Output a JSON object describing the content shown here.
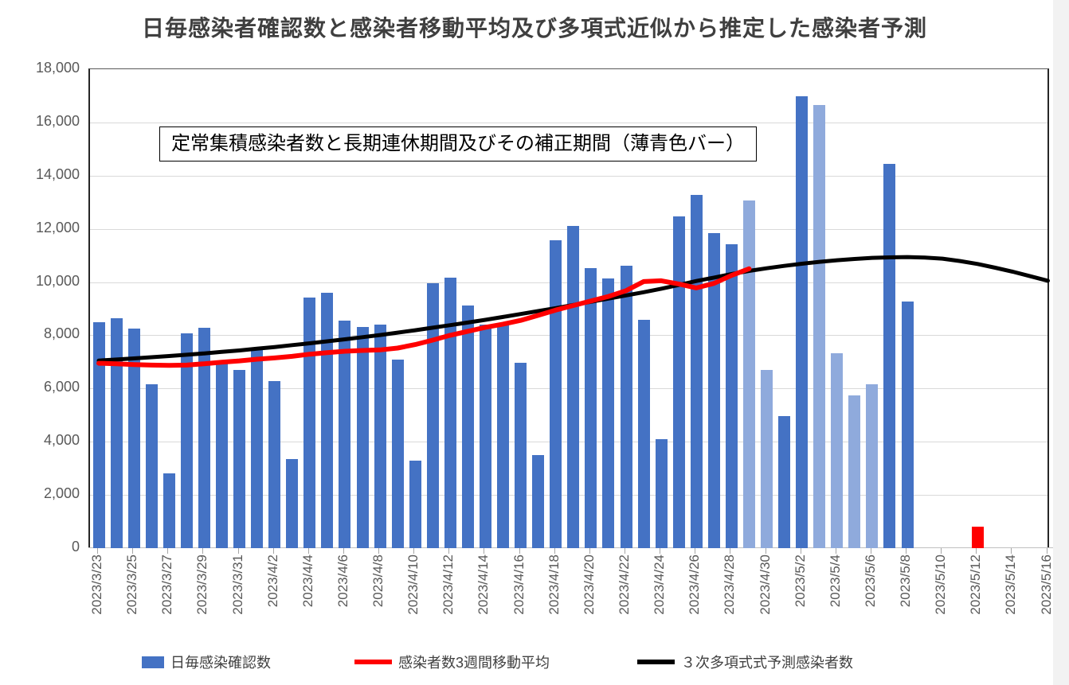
{
  "title": "日毎感染者確認数と感染者移動平均及び多項式近似から推定した感染者予測",
  "annotation": "定常集積感染者数と長期連休期間及びその補正期間（薄青色バー）",
  "colors": {
    "bar_normal": "#4472C4",
    "bar_holiday_light": "#8FAADC",
    "bar_special_red": "#FF0000",
    "ma_line": "#FF0000",
    "poly_line": "#000000",
    "gridline": "#D9D9D9",
    "tick_label": "#595959"
  },
  "legend": [
    {
      "label": "日毎感染確認数",
      "swatch": "bar",
      "color": "#4472C4"
    },
    {
      "label": "感染者数3週間移動平均",
      "swatch": "line",
      "color": "#FF0000"
    },
    {
      "label": "３次多項式式予測感染者数",
      "swatch": "line",
      "color": "#000000"
    }
  ],
  "chart_data": {
    "type": "bar",
    "title": "日毎感染者確認数と感染者移動平均及び多項式近似から推定した感染者予測",
    "xlabel": "",
    "ylabel": "",
    "ylim": [
      0,
      18000
    ],
    "ytick_step": 2000,
    "y_tick_labels": [
      "0",
      "2,000",
      "4,000",
      "6,000",
      "8,000",
      "10,000",
      "12,000",
      "14,000",
      "16,000",
      "18,000"
    ],
    "x_tick_label_every": 2,
    "grid": true,
    "legend_position": "bottom",
    "categories": [
      "2023/3/23",
      "2023/3/24",
      "2023/3/25",
      "2023/3/26",
      "2023/3/27",
      "2023/3/28",
      "2023/3/29",
      "2023/3/30",
      "2023/3/31",
      "2023/4/1",
      "2023/4/2",
      "2023/4/3",
      "2023/4/4",
      "2023/4/5",
      "2023/4/6",
      "2023/4/7",
      "2023/4/8",
      "2023/4/9",
      "2023/4/10",
      "2023/4/11",
      "2023/4/12",
      "2023/4/13",
      "2023/4/14",
      "2023/4/15",
      "2023/4/16",
      "2023/4/17",
      "2023/4/18",
      "2023/4/19",
      "2023/4/20",
      "2023/4/21",
      "2023/4/22",
      "2023/4/23",
      "2023/4/24",
      "2023/4/25",
      "2023/4/26",
      "2023/4/27",
      "2023/4/28",
      "2023/4/29",
      "2023/4/30",
      "2023/5/1",
      "2023/5/2",
      "2023/5/3",
      "2023/5/4",
      "2023/5/5",
      "2023/5/6",
      "2023/5/7",
      "2023/5/8",
      "2023/5/9",
      "2023/5/10",
      "2023/5/11",
      "2023/5/12",
      "2023/5/13",
      "2023/5/14",
      "2023/5/15",
      "2023/5/16"
    ],
    "series": [
      {
        "name": "日毎感染確認数",
        "type": "bar",
        "values": [
          8500,
          8640,
          8250,
          6160,
          2820,
          8060,
          8280,
          7020,
          6700,
          7470,
          6270,
          3350,
          9410,
          9590,
          8540,
          8310,
          8410,
          7090,
          3300,
          9950,
          10170,
          9130,
          8400,
          8460,
          6960,
          3500,
          11570,
          12110,
          10520,
          10150,
          10620,
          8580,
          4100,
          12470,
          13280,
          11840,
          11420,
          13070,
          6700,
          4960,
          16980,
          16650,
          7330,
          5740,
          6160,
          14440,
          9270,
          null,
          null,
          null,
          800,
          null,
          null,
          null,
          null
        ],
        "point_styles": [
          "n",
          "n",
          "n",
          "n",
          "n",
          "n",
          "n",
          "n",
          "n",
          "n",
          "n",
          "n",
          "n",
          "n",
          "n",
          "n",
          "n",
          "n",
          "n",
          "n",
          "n",
          "n",
          "n",
          "n",
          "n",
          "n",
          "n",
          "n",
          "n",
          "n",
          "n",
          "n",
          "n",
          "n",
          "n",
          "n",
          "n",
          "l",
          "l",
          "n",
          "n",
          "l",
          "l",
          "l",
          "l",
          "n",
          "n",
          "n",
          "n",
          "n",
          "r",
          "n",
          "n",
          "n",
          "n"
        ],
        "style_legend": {
          "n": "normal-blue",
          "l": "light-blue-holiday-correction",
          "r": "red-special"
        }
      },
      {
        "name": "感染者数3週間移動平均",
        "type": "line",
        "color": "#FF0000",
        "values": [
          6950,
          6930,
          6900,
          6880,
          6870,
          6880,
          6930,
          6990,
          7040,
          7100,
          7150,
          7210,
          7290,
          7350,
          7400,
          7430,
          7450,
          7520,
          7650,
          7820,
          8000,
          8150,
          8300,
          8420,
          8560,
          8750,
          8950,
          9120,
          9290,
          9460,
          9680,
          10020,
          10050,
          9930,
          9780,
          9950,
          10250,
          10500,
          null,
          null,
          null,
          null,
          null,
          null,
          null,
          null,
          null,
          null,
          null,
          null,
          null,
          null,
          null,
          null,
          null
        ]
      },
      {
        "name": "３次多項式式予測感染者数",
        "type": "line",
        "color": "#000000",
        "values": [
          7050,
          7090,
          7130,
          7175,
          7220,
          7270,
          7320,
          7375,
          7430,
          7495,
          7560,
          7630,
          7700,
          7775,
          7850,
          7930,
          8010,
          8100,
          8190,
          8285,
          8380,
          8480,
          8580,
          8690,
          8800,
          8910,
          9020,
          9140,
          9260,
          9380,
          9500,
          9620,
          9750,
          9890,
          10040,
          10170,
          10300,
          10420,
          10520,
          10610,
          10690,
          10760,
          10820,
          10870,
          10910,
          10930,
          10940,
          10920,
          10880,
          10790,
          10680,
          10540,
          10390,
          10220,
          10050
        ]
      }
    ]
  }
}
